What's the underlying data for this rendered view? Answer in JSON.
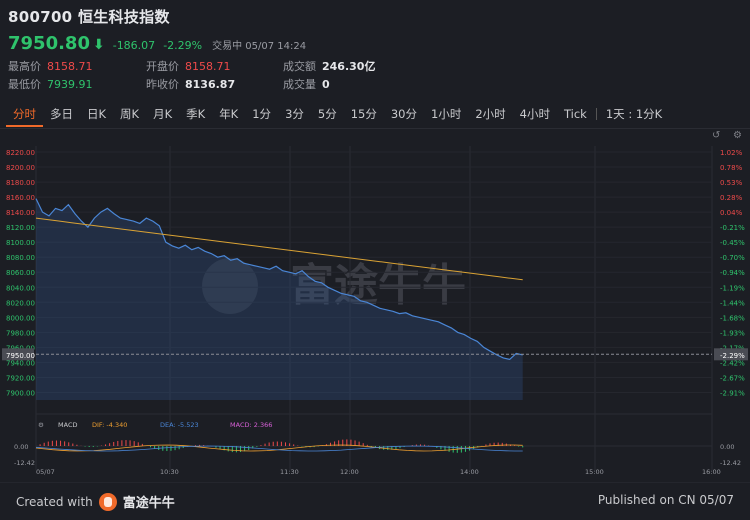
{
  "header": {
    "title": "800700 恒生科技指数",
    "price": "7950.80",
    "arrow": "⬇",
    "change": "-186.07",
    "change_pct": "-2.29%",
    "status": "交易中 05/07 14:24"
  },
  "stats": [
    {
      "label": "最高价",
      "value": "8158.71",
      "tone": "red"
    },
    {
      "label": "开盘价",
      "value": "8158.71",
      "tone": "red"
    },
    {
      "label": "成交额",
      "value": "246.30亿",
      "tone": "white"
    },
    {
      "label": "最低价",
      "value": "7939.91",
      "tone": "green"
    },
    {
      "label": "昨收价",
      "value": "8136.87",
      "tone": "white"
    },
    {
      "label": "成交量",
      "value": "0",
      "tone": "white"
    }
  ],
  "tabs": [
    "分时",
    "多日",
    "日K",
    "周K",
    "月K",
    "季K",
    "年K",
    "1分",
    "3分",
    "5分",
    "15分",
    "30分",
    "1小时",
    "2小时",
    "4小时",
    "Tick",
    "1天 : 1分K"
  ],
  "active_tab": "分时",
  "watermark": "富途牛牛",
  "chart_data": {
    "type": "line",
    "y_ticks_left": [
      "8220.00",
      "8200.00",
      "8180.00",
      "8160.00",
      "8140.00",
      "8120.00",
      "8100.00",
      "8080.00",
      "8060.00",
      "8040.00",
      "8020.00",
      "8000.00",
      "7980.00",
      "7960.00",
      "7950.00",
      "7940.00",
      "7920.00",
      "7900.00"
    ],
    "y_ticks_right": [
      "1.02%",
      "0.78%",
      "0.53%",
      "0.28%",
      "0.04%",
      "-0.21%",
      "-0.45%",
      "-0.70%",
      "-0.94%",
      "-1.19%",
      "-1.44%",
      "-1.68%",
      "-1.93%",
      "-2.17%",
      "-2.29%",
      "-2.42%",
      "-2.67%",
      "-2.91%"
    ],
    "x_labels": [
      "05/07",
      "10:30",
      "11:30",
      "12:00",
      "14:00",
      "15:00",
      "16:00"
    ],
    "current_price": 7950.8,
    "ylim": [
      7890,
      8228
    ],
    "price_series": [
      8158,
      8140,
      8135,
      8145,
      8142,
      8150,
      8138,
      8128,
      8120,
      8132,
      8140,
      8145,
      8138,
      8132,
      8130,
      8128,
      8125,
      8132,
      8128,
      8122,
      8100,
      8095,
      8092,
      8096,
      8090,
      8093,
      8088,
      8085,
      8080,
      8082,
      8076,
      8078,
      8072,
      8070,
      8068,
      8066,
      8064,
      8068,
      8062,
      8060,
      8058,
      8062,
      8054,
      8048,
      8046,
      8040,
      8036,
      8032,
      8030,
      8028,
      8022,
      8020,
      8016,
      8012,
      8010,
      8008,
      8005,
      8006,
      8002,
      8000,
      7998,
      7996,
      7994,
      7990,
      7986,
      7980,
      7977,
      7972,
      7968,
      7960,
      7955,
      7950,
      7946,
      7944,
      7952,
      7950
    ],
    "avg_series": [
      8132,
      8130,
      8128,
      8126,
      8124,
      8122,
      8120,
      8118,
      8116,
      8114,
      8112,
      8110,
      8108,
      8106,
      8104,
      8102,
      8100,
      8098,
      8096,
      8094,
      8092,
      8090,
      8088,
      8086,
      8084,
      8082,
      8080,
      8078,
      8076,
      8074,
      8072,
      8070,
      8068,
      8066,
      8064,
      8062,
      8060,
      8058,
      8056,
      8054,
      8052,
      8050
    ],
    "series_colors": {
      "price": "#4a86d6",
      "avg": "#d9a234"
    },
    "macd": {
      "label": "MACD",
      "dif_label": "DIF: -4.340",
      "dea_label": "DEA: -5.523",
      "macd_label": "MACD: 2.366",
      "y_ticks": [
        "0.00",
        "-12.42"
      ],
      "y_ticks_right": [
        "0.00",
        "-12.42"
      ],
      "colors": {
        "dif": "#f0a030",
        "dea": "#4a86d6",
        "macd": "#d760d7"
      }
    }
  },
  "footer": {
    "created_label": "Created with",
    "brand": "富途牛牛",
    "published": "Published on CN 05/07"
  }
}
